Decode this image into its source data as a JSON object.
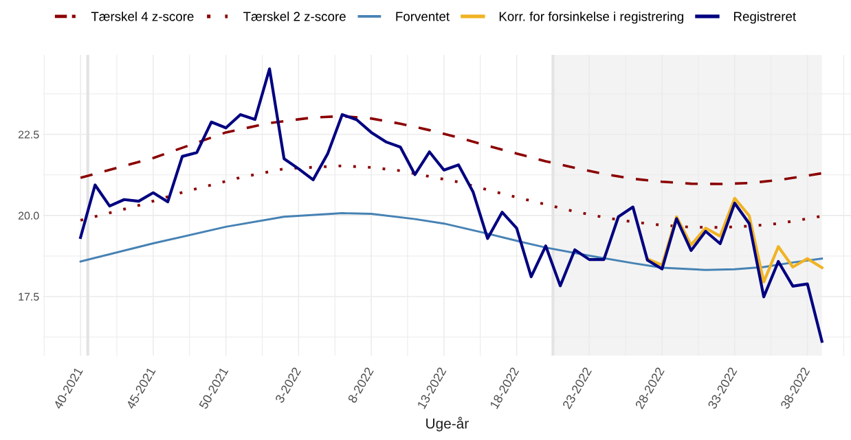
{
  "chart_data": {
    "type": "line",
    "xlabel": "Uge-år",
    "x": [
      "2021-10-04",
      "2021-10-11",
      "2021-10-18",
      "2021-10-25",
      "2021-11-01",
      "2021-11-08",
      "2021-11-15",
      "2021-11-22",
      "2021-11-29",
      "2021-12-06",
      "2021-12-13",
      "2021-12-20",
      "2021-12-27",
      "2022-01-03",
      "2022-01-10",
      "2022-01-17",
      "2022-01-24",
      "2022-01-31",
      "2022-02-07",
      "2022-02-14",
      "2022-02-21",
      "2022-02-28",
      "2022-03-07",
      "2022-03-14",
      "2022-03-21",
      "2022-03-28",
      "2022-04-04",
      "2022-04-11",
      "2022-04-18",
      "2022-04-25",
      "2022-05-02",
      "2022-05-09",
      "2022-05-16",
      "2022-05-23",
      "2022-05-30",
      "2022-06-06",
      "2022-06-13",
      "2022-06-20",
      "2022-06-27",
      "2022-07-04",
      "2022-07-11",
      "2022-07-18",
      "2022-07-25",
      "2022-08-01",
      "2022-08-08",
      "2022-08-15",
      "2022-08-22",
      "2022-08-29",
      "2022-09-05",
      "2022-09-12",
      "2022-09-19",
      "2022-09-26"
    ],
    "series": [
      {
        "name": "Tærskel 4 z-score",
        "color": "#8b0000",
        "line_style": "dashed",
        "x": [
          "2021-10-04",
          "2021-11-08",
          "2021-12-13",
          "2022-01-03",
          "2022-01-24",
          "2022-02-07",
          "2022-02-21",
          "2022-03-07",
          "2022-03-21",
          "2022-04-04",
          "2022-04-18",
          "2022-05-02",
          "2022-05-16",
          "2022-05-30",
          "2022-06-13",
          "2022-06-27",
          "2022-07-11",
          "2022-07-25",
          "2022-08-08",
          "2022-08-22",
          "2022-09-05",
          "2022-09-19",
          "2022-09-26"
        ],
        "values": [
          21.16,
          21.77,
          22.56,
          22.85,
          23.02,
          23.06,
          22.99,
          22.83,
          22.63,
          22.4,
          22.15,
          21.91,
          21.67,
          21.47,
          21.28,
          21.13,
          21.04,
          20.98,
          20.97,
          21.0,
          21.09,
          21.23,
          21.3
        ]
      },
      {
        "name": "Tærskel 2 z-score",
        "color": "#8b0000",
        "line_style": "dotted",
        "x": [
          "2021-10-04",
          "2021-11-01",
          "2021-11-22",
          "2021-12-20",
          "2022-01-10",
          "2022-02-07",
          "2022-02-21",
          "2022-03-07",
          "2022-03-21",
          "2022-04-04",
          "2022-04-18",
          "2022-05-02",
          "2022-05-16",
          "2022-05-30",
          "2022-06-13",
          "2022-06-27",
          "2022-07-11",
          "2022-07-25",
          "2022-08-08",
          "2022-08-22",
          "2022-09-05",
          "2022-09-19",
          "2022-09-26"
        ],
        "values": [
          19.85,
          20.31,
          20.71,
          21.17,
          21.44,
          21.53,
          21.48,
          21.38,
          21.2,
          21.03,
          20.79,
          20.56,
          20.34,
          20.12,
          19.94,
          19.8,
          19.7,
          19.64,
          19.63,
          19.67,
          19.75,
          19.9,
          19.98
        ]
      },
      {
        "name": "Forventet",
        "color": "#4682b4",
        "line_style": "solid",
        "x": [
          "2021-10-04",
          "2021-11-08",
          "2021-12-13",
          "2022-01-10",
          "2022-02-07",
          "2022-02-21",
          "2022-03-14",
          "2022-03-28",
          "2022-04-18",
          "2022-05-02",
          "2022-05-16",
          "2022-06-06",
          "2022-06-27",
          "2022-07-11",
          "2022-08-01",
          "2022-08-15",
          "2022-08-29",
          "2022-09-12",
          "2022-09-26"
        ],
        "values": [
          18.58,
          19.14,
          19.65,
          19.96,
          20.07,
          20.05,
          19.89,
          19.75,
          19.44,
          19.22,
          19.01,
          18.76,
          18.53,
          18.39,
          18.32,
          18.34,
          18.41,
          18.55,
          18.67
        ]
      },
      {
        "name": "Korr. for forsinkelse i registrering",
        "color": "#f0b323",
        "line_style": "solid",
        "x": [
          "2022-07-04",
          "2022-07-11",
          "2022-07-18",
          "2022-07-25",
          "2022-08-01",
          "2022-08-08",
          "2022-08-15",
          "2022-08-22",
          "2022-08-29",
          "2022-09-05",
          "2022-09-12",
          "2022-09-19",
          "2022-09-26"
        ],
        "values": [
          18.66,
          18.47,
          19.96,
          19.09,
          19.61,
          19.36,
          20.53,
          19.99,
          17.95,
          19.04,
          18.41,
          18.67,
          18.39
        ]
      },
      {
        "name": "Registreret",
        "color": "#000080",
        "line_style": "solid",
        "values": [
          19.32,
          20.94,
          20.29,
          20.49,
          20.44,
          20.7,
          20.42,
          21.82,
          21.94,
          22.88,
          22.7,
          23.11,
          22.96,
          24.52,
          21.75,
          21.44,
          21.1,
          21.9,
          23.11,
          22.95,
          22.56,
          22.27,
          22.11,
          21.26,
          21.96,
          21.4,
          21.56,
          20.73,
          19.29,
          20.1,
          19.61,
          18.11,
          19.06,
          17.83,
          18.94,
          18.64,
          18.64,
          19.96,
          20.26,
          18.62,
          18.35,
          19.9,
          18.92,
          19.51,
          19.13,
          20.38,
          19.75,
          17.49,
          18.58,
          17.82,
          17.89,
          16.12
        ]
      }
    ],
    "xlim": [
      "2021-09-16",
      "2022-10-10"
    ],
    "xticks": [
      {
        "value": "2021-10-04",
        "label": "40-2021"
      },
      {
        "value": "2021-11-08",
        "label": "45-2021"
      },
      {
        "value": "2021-12-13",
        "label": "50-2021"
      },
      {
        "value": "2022-01-17",
        "label": "3-2022"
      },
      {
        "value": "2022-02-21",
        "label": "8-2022"
      },
      {
        "value": "2022-03-28",
        "label": "13-2022"
      },
      {
        "value": "2022-05-02",
        "label": "18-2022"
      },
      {
        "value": "2022-06-06",
        "label": "23-2022"
      },
      {
        "value": "2022-07-11",
        "label": "28-2022"
      },
      {
        "value": "2022-08-15",
        "label": "33-2022"
      },
      {
        "value": "2022-09-19",
        "label": "38-2022"
      }
    ],
    "ylim": [
      15.68,
      24.95
    ],
    "yticks": [
      17.5,
      {
        "value": 20.0,
        "label": "20.0"
      },
      22.5
    ],
    "ref_lines": [
      {
        "axis": "x",
        "value": "2021-10-07T12:00",
        "color": "#e3e3e3"
      },
      {
        "axis": "x",
        "value": "2022-05-19T12:00",
        "color": "#e3e3e3"
      }
    ],
    "bands": [
      {
        "axis": "x",
        "from": "2022-05-19T12:00",
        "to": "2022-09-26",
        "color": "#f3f3f3"
      }
    ],
    "grid": true,
    "legend": "top"
  }
}
